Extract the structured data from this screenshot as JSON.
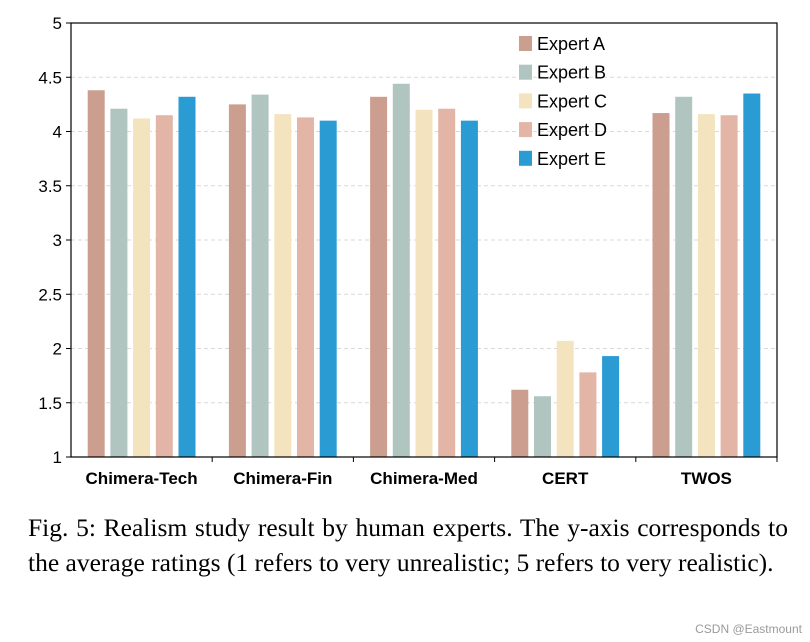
{
  "chart_data": {
    "type": "bar",
    "categories": [
      "Chimera-Tech",
      "Chimera-Fin",
      "Chimera-Med",
      "CERT",
      "TWOS"
    ],
    "series": [
      {
        "name": "Expert A",
        "color": "#cc9e8f",
        "values": [
          4.38,
          4.25,
          4.32,
          1.62,
          4.17
        ]
      },
      {
        "name": "Expert B",
        "color": "#b0c4c0",
        "values": [
          4.21,
          4.34,
          4.44,
          1.56,
          4.32
        ]
      },
      {
        "name": "Expert C",
        "color": "#f4e3bf",
        "values": [
          4.12,
          4.16,
          4.2,
          2.07,
          4.16
        ]
      },
      {
        "name": "Expert D",
        "color": "#e3b5a7",
        "values": [
          4.15,
          4.13,
          4.21,
          1.78,
          4.15
        ]
      },
      {
        "name": "Expert E",
        "color": "#2a9bd3",
        "values": [
          4.32,
          4.1,
          4.1,
          1.93,
          4.35
        ]
      }
    ],
    "ylim": [
      1,
      5
    ],
    "yticks": [
      "1",
      "1.5",
      "2",
      "2.5",
      "3",
      "3.5",
      "4",
      "4.5",
      "5"
    ],
    "grid": true,
    "legend": "top-right"
  },
  "caption": "Fig. 5: Realism study result by human experts. The y-axis corresponds to the average ratings (1 refers to very unrealistic; 5 refers to very realistic).",
  "watermark": "CSDN @Eastmount"
}
